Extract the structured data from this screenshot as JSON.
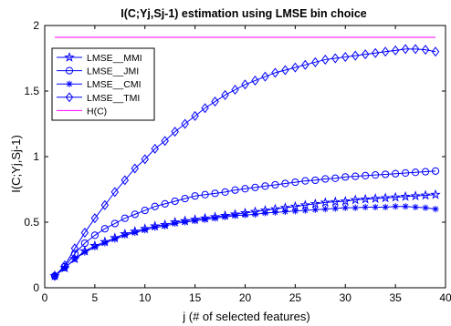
{
  "chart_data": {
    "type": "line",
    "title": "I(C;Yj,Sj-1) estimation using LMSE bin choice",
    "xlabel": "j (# of selected features)",
    "ylabel": "I(C;Yj,Sj-1)",
    "xlim": [
      0,
      40
    ],
    "ylim": [
      0,
      2
    ],
    "xticks": [
      0,
      5,
      10,
      15,
      20,
      25,
      30,
      35,
      40
    ],
    "yticks": [
      0,
      0.5,
      1,
      1.5,
      2
    ],
    "ytick_labels": [
      "0",
      "0.5",
      "1",
      "1.5",
      "2"
    ],
    "grid": false,
    "legend_position": "top-left",
    "x": [
      1,
      2,
      3,
      4,
      5,
      6,
      7,
      8,
      9,
      10,
      11,
      12,
      13,
      14,
      15,
      16,
      17,
      18,
      19,
      20,
      21,
      22,
      23,
      24,
      25,
      26,
      27,
      28,
      29,
      30,
      31,
      32,
      33,
      34,
      35,
      36,
      37,
      38,
      39
    ],
    "series": [
      {
        "name": "LMSE__MMI",
        "marker": "star",
        "color": "#0000ff",
        "values": [
          0.09,
          0.15,
          0.22,
          0.28,
          0.32,
          0.35,
          0.38,
          0.41,
          0.43,
          0.45,
          0.47,
          0.48,
          0.5,
          0.51,
          0.52,
          0.53,
          0.54,
          0.55,
          0.56,
          0.57,
          0.58,
          0.59,
          0.6,
          0.61,
          0.62,
          0.63,
          0.64,
          0.65,
          0.655,
          0.66,
          0.67,
          0.675,
          0.68,
          0.685,
          0.69,
          0.695,
          0.7,
          0.705,
          0.71
        ]
      },
      {
        "name": "LMSE__JMI",
        "marker": "circle",
        "color": "#0000ff",
        "values": [
          0.09,
          0.16,
          0.26,
          0.34,
          0.4,
          0.45,
          0.49,
          0.53,
          0.56,
          0.59,
          0.62,
          0.64,
          0.66,
          0.68,
          0.7,
          0.71,
          0.72,
          0.73,
          0.745,
          0.755,
          0.765,
          0.775,
          0.785,
          0.795,
          0.805,
          0.815,
          0.82,
          0.83,
          0.835,
          0.845,
          0.85,
          0.855,
          0.86,
          0.865,
          0.87,
          0.875,
          0.88,
          0.885,
          0.89
        ]
      },
      {
        "name": "LMSE__CMI",
        "marker": "asterisk",
        "color": "#0000ff",
        "values": [
          0.09,
          0.15,
          0.22,
          0.27,
          0.31,
          0.34,
          0.37,
          0.4,
          0.42,
          0.44,
          0.46,
          0.47,
          0.49,
          0.5,
          0.51,
          0.52,
          0.53,
          0.54,
          0.55,
          0.555,
          0.56,
          0.57,
          0.575,
          0.58,
          0.585,
          0.59,
          0.595,
          0.6,
          0.605,
          0.61,
          0.61,
          0.615,
          0.615,
          0.615,
          0.62,
          0.62,
          0.615,
          0.61,
          0.6
        ]
      },
      {
        "name": "LMSE__TMI",
        "marker": "diamond",
        "color": "#0000ff",
        "values": [
          0.09,
          0.17,
          0.3,
          0.42,
          0.53,
          0.63,
          0.73,
          0.82,
          0.91,
          0.98,
          1.06,
          1.12,
          1.19,
          1.25,
          1.31,
          1.37,
          1.42,
          1.47,
          1.51,
          1.55,
          1.58,
          1.61,
          1.64,
          1.66,
          1.68,
          1.7,
          1.72,
          1.74,
          1.75,
          1.76,
          1.77,
          1.78,
          1.79,
          1.8,
          1.81,
          1.82,
          1.82,
          1.815,
          1.8
        ]
      },
      {
        "name": "H(C)",
        "marker": "none",
        "color": "#ff00ff",
        "constant": 1.91
      }
    ]
  }
}
